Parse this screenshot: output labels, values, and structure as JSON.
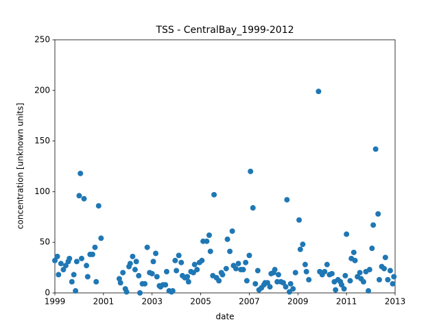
{
  "chart_data": {
    "type": "scatter",
    "title": "TSS - CentralBay_1999-2012",
    "x_label": "date",
    "y_label": "concentration [unknown units]",
    "color": "#1f77b4",
    "grid": false,
    "xlim": [
      1999,
      2013
    ],
    "xticks": [
      1999,
      2001,
      2003,
      2005,
      2007,
      2009,
      2011,
      2013
    ],
    "ylim": [
      0,
      250
    ],
    "yticks": [
      0,
      50,
      100,
      150,
      200,
      250
    ],
    "x": [
      1999.0,
      1999.1,
      1999.15,
      1999.25,
      1999.35,
      1999.45,
      1999.55,
      1999.6,
      1999.7,
      1999.78,
      1999.85,
      1999.9,
      2000.0,
      2000.05,
      2000.1,
      2000.2,
      2000.3,
      2000.35,
      2000.45,
      2000.55,
      2000.65,
      2000.7,
      2000.8,
      2000.9,
      2001.65,
      2001.7,
      2001.8,
      2001.9,
      2001.95,
      2002.05,
      2002.1,
      2002.2,
      2002.3,
      2002.35,
      2002.45,
      2002.5,
      2002.6,
      2002.7,
      2002.8,
      2002.9,
      2003.0,
      2003.05,
      2003.15,
      2003.2,
      2003.3,
      2003.35,
      2003.45,
      2003.55,
      2003.6,
      2003.7,
      2003.8,
      2003.85,
      2003.95,
      2004.0,
      2004.1,
      2004.2,
      2004.25,
      2004.35,
      2004.45,
      2004.5,
      2004.6,
      2004.7,
      2004.75,
      2004.85,
      2004.95,
      2005.05,
      2005.1,
      2005.25,
      2005.35,
      2005.4,
      2005.5,
      2005.55,
      2005.65,
      2005.75,
      2005.85,
      2005.9,
      2006.05,
      2006.1,
      2006.2,
      2006.3,
      2006.35,
      2006.45,
      2006.55,
      2006.65,
      2006.75,
      2006.85,
      2006.9,
      2007.0,
      2007.05,
      2007.15,
      2007.25,
      2007.35,
      2007.4,
      2007.5,
      2007.6,
      2007.65,
      2007.75,
      2007.85,
      2007.9,
      2008.0,
      2008.05,
      2008.15,
      2008.2,
      2008.3,
      2008.4,
      2008.5,
      2008.55,
      2008.65,
      2008.7,
      2008.8,
      2008.9,
      2009.05,
      2009.1,
      2009.2,
      2009.3,
      2009.35,
      2009.45,
      2009.85,
      2009.9,
      2010.0,
      2010.1,
      2010.2,
      2010.3,
      2010.4,
      2010.5,
      2010.55,
      2010.65,
      2010.75,
      2010.8,
      2010.9,
      2010.95,
      2011.0,
      2011.15,
      2011.2,
      2011.3,
      2011.35,
      2011.45,
      2011.55,
      2011.6,
      2011.7,
      2011.8,
      2011.9,
      2011.95,
      2012.05,
      2012.1,
      2012.2,
      2012.3,
      2012.35,
      2012.45,
      2012.55,
      2012.6,
      2012.7,
      2012.8,
      2012.9,
      2012.95
    ],
    "values": [
      32,
      36,
      18,
      29,
      23,
      27,
      31,
      34,
      11,
      18,
      2,
      31,
      96,
      118,
      34,
      93,
      27,
      16,
      38,
      38,
      45,
      11,
      86,
      54,
      14,
      10,
      20,
      4,
      1,
      26,
      29,
      36,
      23,
      31,
      17,
      0,
      9,
      9,
      45,
      20,
      19,
      31,
      39,
      16,
      7,
      6,
      8,
      8,
      21,
      2,
      1,
      2,
      32,
      22,
      37,
      30,
      17,
      15,
      16,
      11,
      21,
      20,
      28,
      23,
      30,
      32,
      51,
      51,
      57,
      41,
      17,
      97,
      15,
      12,
      20,
      18,
      24,
      53,
      41,
      61,
      27,
      24,
      29,
      23,
      23,
      30,
      12,
      37,
      120,
      84,
      9,
      22,
      3,
      5,
      8,
      10,
      10,
      6,
      19,
      20,
      23,
      11,
      18,
      11,
      10,
      6,
      92,
      1,
      9,
      4,
      20,
      72,
      43,
      48,
      28,
      21,
      13,
      199,
      21,
      18,
      21,
      28,
      18,
      19,
      11,
      3,
      13,
      11,
      8,
      4,
      17,
      58,
      12,
      34,
      40,
      32,
      16,
      20,
      14,
      11,
      21,
      2,
      23,
      44,
      67,
      142,
      78,
      13,
      26,
      24,
      35,
      13,
      22,
      9,
      16
    ]
  }
}
